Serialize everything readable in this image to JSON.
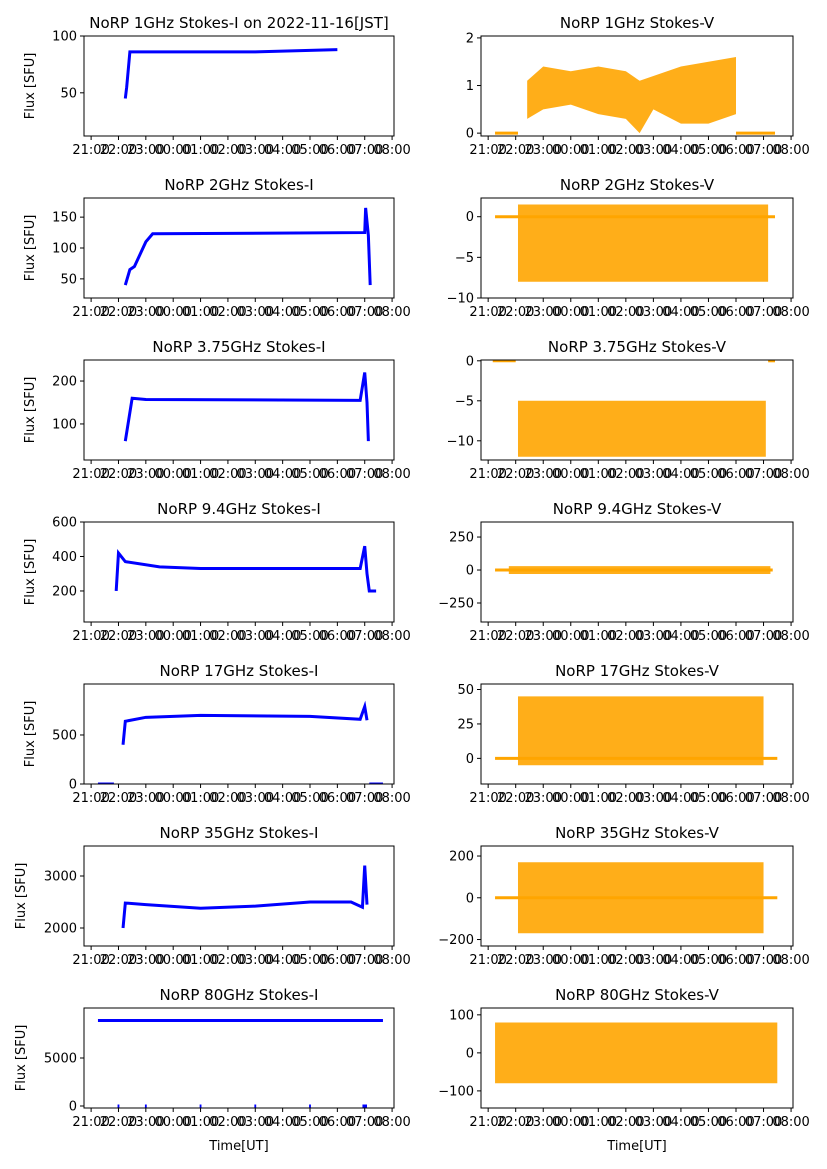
{
  "colors": {
    "stokes_i": "#0000ff",
    "stokes_v": "#ffa500"
  },
  "x_ticks": [
    "21:00",
    "22:00",
    "23:00",
    "00:00",
    "01:00",
    "02:00",
    "03:00",
    "04:00",
    "05:00",
    "06:00",
    "07:00",
    "08:00"
  ],
  "xlabel": "Time[UT]",
  "ylabel_i": "Flux [SFU]",
  "chart_data": [
    {
      "type": "line",
      "title": "NoRP 1GHz Stokes-I on 2022-11-16[JST]",
      "ylabel": "Flux [SFU]",
      "ylim": [
        12,
        100
      ],
      "yticks": [
        50,
        100
      ],
      "series": [
        {
          "x": [
            "22:15",
            "22:18",
            "22:25",
            "00:00",
            "03:00",
            "06:00"
          ],
          "y": [
            45,
            55,
            86,
            86,
            86,
            88
          ]
        }
      ]
    },
    {
      "type": "scatter",
      "title": "NoRP 1GHz Stokes-V",
      "ylim": [
        -0.06,
        2.04
      ],
      "yticks": [
        0,
        1,
        2
      ],
      "zero_segments": [
        [
          "21:15",
          "22:05"
        ],
        [
          "06:00",
          "07:25"
        ]
      ],
      "band": {
        "x": [
          "22:25",
          "23:00",
          "00:00",
          "01:00",
          "02:00",
          "02:30",
          "03:00",
          "04:00",
          "05:00",
          "06:00"
        ],
        "upper": [
          1.1,
          1.4,
          1.3,
          1.4,
          1.3,
          1.1,
          1.2,
          1.4,
          1.5,
          1.6
        ],
        "lower": [
          0.3,
          0.5,
          0.6,
          0.4,
          0.3,
          0.0,
          0.5,
          0.2,
          0.2,
          0.4
        ]
      }
    },
    {
      "type": "line",
      "title": "NoRP 2GHz Stokes-I",
      "ylabel": "Flux [SFU]",
      "ylim": [
        19,
        181
      ],
      "yticks": [
        50,
        100,
        150
      ],
      "series": [
        {
          "x": [
            "22:15",
            "22:25",
            "22:35",
            "23:00",
            "23:15",
            "07:00",
            "07:02",
            "07:08",
            "07:12"
          ],
          "y": [
            40,
            65,
            70,
            110,
            123,
            125,
            165,
            120,
            40
          ]
        }
      ]
    },
    {
      "type": "scatter",
      "title": "NoRP 2GHz Stokes-V",
      "ylim": [
        -10,
        2.3
      ],
      "yticks": [
        -10,
        -5,
        0
      ],
      "zero_segments": [
        [
          "21:15",
          "07:25"
        ]
      ],
      "band": {
        "x": [
          "22:05",
          "07:10"
        ],
        "upper": [
          1.5,
          1.5
        ],
        "lower": [
          -8,
          -8
        ]
      }
    },
    {
      "type": "line",
      "title": "NoRP 3.75GHz Stokes-I",
      "ylabel": "Flux [SFU]",
      "ylim": [
        16,
        249
      ],
      "yticks": [
        100,
        200
      ],
      "series": [
        {
          "x": [
            "22:15",
            "22:30",
            "23:00",
            "06:50",
            "07:00",
            "07:05",
            "07:08"
          ],
          "y": [
            60,
            160,
            157,
            155,
            220,
            150,
            60
          ]
        }
      ]
    },
    {
      "type": "scatter",
      "title": "NoRP 3.75GHz Stokes-V",
      "ylim": [
        -12.4,
        0.1
      ],
      "yticks": [
        -10,
        -5,
        0
      ],
      "zero_segments": [
        [
          "21:10",
          "22:00"
        ],
        [
          "07:10",
          "07:25"
        ]
      ],
      "band": {
        "x": [
          "22:05",
          "07:05"
        ],
        "upper": [
          -5,
          -5
        ],
        "lower": [
          -12,
          -12
        ]
      }
    },
    {
      "type": "line",
      "title": "NoRP 9.4GHz Stokes-I",
      "ylabel": "Flux [SFU]",
      "ylim": [
        20,
        600
      ],
      "yticks": [
        200,
        400,
        600
      ],
      "series": [
        {
          "x": [
            "21:55",
            "22:00",
            "22:15",
            "23:30",
            "01:00",
            "06:50",
            "07:00",
            "07:05",
            "07:10",
            "07:25"
          ],
          "y": [
            200,
            420,
            370,
            340,
            330,
            330,
            460,
            300,
            200,
            200
          ]
        }
      ]
    },
    {
      "type": "scatter",
      "title": "NoRP 9.4GHz Stokes-V",
      "ylim": [
        -394,
        364
      ],
      "yticks": [
        -250,
        0,
        250
      ],
      "zero_segments": [
        [
          "21:15",
          "07:20"
        ]
      ],
      "band": {
        "x": [
          "21:45",
          "07:15"
        ],
        "upper": [
          30,
          30
        ],
        "lower": [
          -30,
          -30
        ]
      }
    },
    {
      "type": "line",
      "title": "NoRP 17GHz Stokes-I",
      "ylabel": "Flux [SFU]",
      "ylim": [
        0,
        1020
      ],
      "yticks": [
        0,
        500
      ],
      "series": [
        {
          "x": [
            "22:10",
            "22:15",
            "23:00",
            "01:00",
            "05:00",
            "06:50",
            "07:00",
            "07:05"
          ],
          "y": [
            400,
            640,
            680,
            700,
            690,
            660,
            790,
            650
          ]
        }
      ],
      "zero_segments": [
        [
          "21:15",
          "21:50"
        ],
        [
          "07:10",
          "07:40"
        ]
      ]
    },
    {
      "type": "scatter",
      "title": "NoRP 17GHz Stokes-V",
      "ylim": [
        -18.6,
        54
      ],
      "yticks": [
        0,
        25,
        50
      ],
      "zero_segments": [
        [
          "21:15",
          "07:30"
        ]
      ],
      "band": {
        "x": [
          "22:05",
          "07:00"
        ],
        "upper": [
          45,
          45
        ],
        "lower": [
          -5,
          -5
        ]
      }
    },
    {
      "type": "line",
      "title": "NoRP 35GHz Stokes-I",
      "ylabel": "Flux [SFU]",
      "ylim": [
        1654,
        3577
      ],
      "yticks": [
        2000,
        3000
      ],
      "series": [
        {
          "x": [
            "22:10",
            "22:15",
            "23:00",
            "01:00",
            "03:00",
            "05:00",
            "06:30",
            "06:55",
            "07:00",
            "07:05"
          ],
          "y": [
            2000,
            2480,
            2450,
            2380,
            2420,
            2500,
            2500,
            2400,
            3200,
            2450
          ]
        }
      ]
    },
    {
      "type": "scatter",
      "title": "NoRP 35GHz Stokes-V",
      "ylim": [
        -231,
        248
      ],
      "yticks": [
        -200,
        0,
        200
      ],
      "zero_segments": [
        [
          "21:15",
          "07:30"
        ]
      ],
      "band": {
        "x": [
          "22:05",
          "07:00"
        ],
        "upper": [
          170,
          170
        ],
        "lower": [
          -170,
          -170
        ]
      }
    },
    {
      "type": "line",
      "title": "NoRP 80GHz Stokes-I",
      "ylabel": "Flux [SFU]",
      "ylim": [
        -208,
        10208
      ],
      "yticks": [
        0,
        5000
      ],
      "series": [
        {
          "x": [
            "21:15",
            "07:40"
          ],
          "y": [
            8900,
            8900
          ]
        }
      ],
      "zero_segments": [
        [
          "21:58",
          "22:02"
        ],
        [
          "22:58",
          "23:02"
        ],
        [
          "00:58",
          "01:02"
        ],
        [
          "02:58",
          "03:02"
        ],
        [
          "04:58",
          "05:02"
        ],
        [
          "06:55",
          "07:05"
        ]
      ]
    },
    {
      "type": "scatter",
      "title": "NoRP 80GHz Stokes-V",
      "ylim": [
        -145,
        118
      ],
      "yticks": [
        -100,
        0,
        100
      ],
      "band": {
        "x": [
          "21:15",
          "07:30"
        ],
        "upper": [
          80,
          80
        ],
        "lower": [
          -80,
          -80
        ]
      }
    }
  ]
}
